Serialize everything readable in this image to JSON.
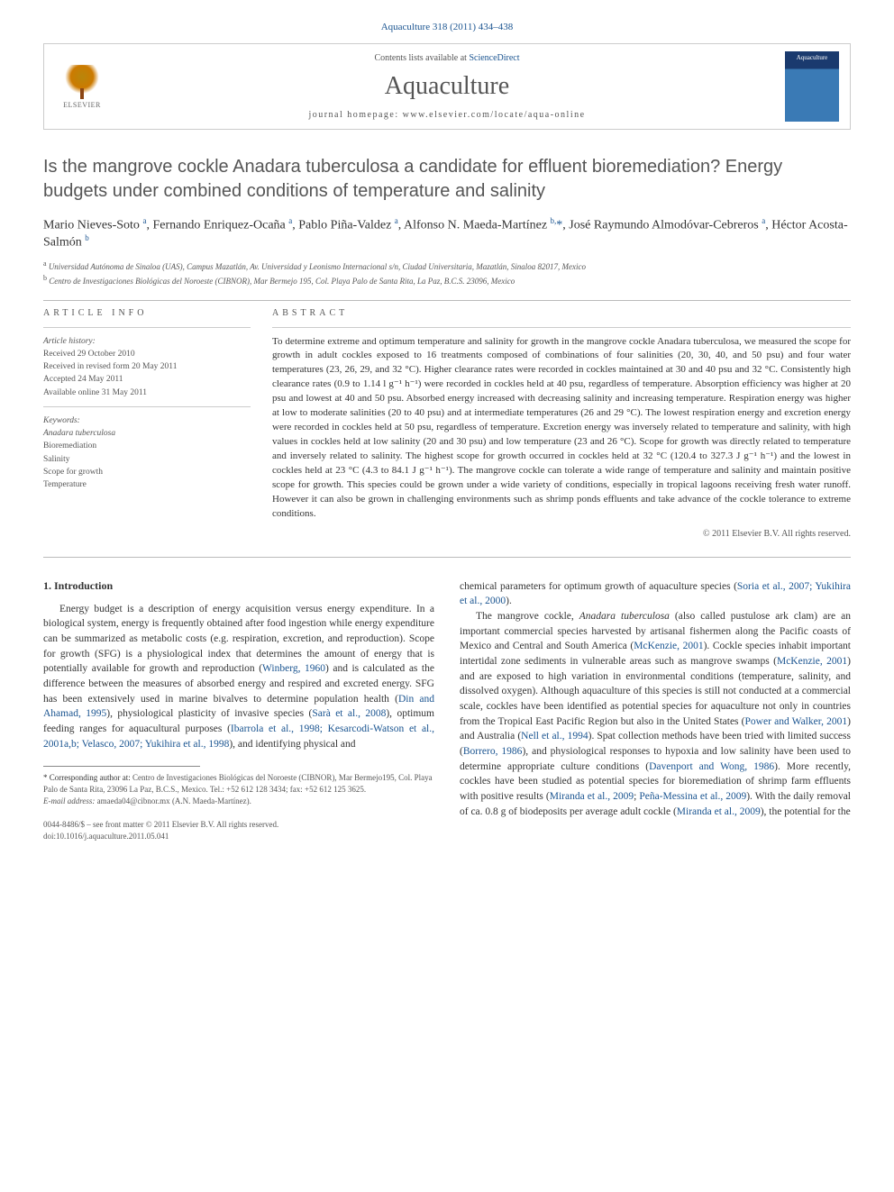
{
  "journal_ref": "Aquaculture 318 (2011) 434–438",
  "header": {
    "contents_prefix": "Contents lists available at ",
    "contents_link": "ScienceDirect",
    "journal_name": "Aquaculture",
    "homepage_prefix": "journal homepage: ",
    "homepage_url": "www.elsevier.com/locate/aqua-online",
    "elsevier_label": "ELSEVIER",
    "cover_label": "Aquaculture"
  },
  "title": "Is the mangrove cockle Anadara tuberculosa a candidate for effluent bioremediation? Energy budgets under combined conditions of temperature and salinity",
  "authors_html": "Mario Nieves-Soto <sup>a</sup>, Fernando Enriquez-Ocaña <sup>a</sup>, Pablo Piña-Valdez <sup>a</sup>, Alfonso N. Maeda-Martínez <sup>b,</sup><span class='ast'>*</span>, José Raymundo Almodóvar-Cebreros <sup>a</sup>, Héctor Acosta-Salmón <sup>b</sup>",
  "affiliations": {
    "a": "Universidad Autónoma de Sinaloa (UAS), Campus Mazatlán, Av. Universidad y Leonismo Internacional s/n, Ciudad Universitaria, Mazatlán, Sinaloa 82017, Mexico",
    "b": "Centro de Investigaciones Biológicas del Noroeste (CIBNOR), Mar Bermejo 195, Col. Playa Palo de Santa Rita, La Paz, B.C.S. 23096, Mexico"
  },
  "article_info": {
    "label": "ARTICLE INFO",
    "history_label": "Article history:",
    "received": "Received 29 October 2010",
    "revised": "Received in revised form 20 May 2011",
    "accepted": "Accepted 24 May 2011",
    "online": "Available online 31 May 2011",
    "keywords_label": "Keywords:",
    "keywords": [
      "Anadara tuberculosa",
      "Bioremediation",
      "Salinity",
      "Scope for growth",
      "Temperature"
    ]
  },
  "abstract": {
    "label": "ABSTRACT",
    "text": "To determine extreme and optimum temperature and salinity for growth in the mangrove cockle Anadara tuberculosa, we measured the scope for growth in adult cockles exposed to 16 treatments composed of combinations of four salinities (20, 30, 40, and 50 psu) and four water temperatures (23, 26, 29, and 32 °C). Higher clearance rates were recorded in cockles maintained at 30 and 40 psu and 32 °C. Consistently high clearance rates (0.9 to 1.14 l g⁻¹ h⁻¹) were recorded in cockles held at 40 psu, regardless of temperature. Absorption efficiency was higher at 20 psu and lowest at 40 and 50 psu. Absorbed energy increased with decreasing salinity and increasing temperature. Respiration energy was higher at low to moderate salinities (20 to 40 psu) and at intermediate temperatures (26 and 29 °C). The lowest respiration energy and excretion energy were recorded in cockles held at 50 psu, regardless of temperature. Excretion energy was inversely related to temperature and salinity, with high values in cockles held at low salinity (20 and 30 psu) and low temperature (23 and 26 °C). Scope for growth was directly related to temperature and inversely related to salinity. The highest scope for growth occurred in cockles held at 32 °C (120.4 to 327.3 J g⁻¹ h⁻¹) and the lowest in cockles held at 23 °C (4.3 to 84.1 J g⁻¹ h⁻¹). The mangrove cockle can tolerate a wide range of temperature and salinity and maintain positive scope for growth. This species could be grown under a wide variety of conditions, especially in tropical lagoons receiving fresh water runoff. However it can also be grown in challenging environments such as shrimp ponds effluents and take advance of the cockle tolerance to extreme conditions.",
    "copyright": "© 2011 Elsevier B.V. All rights reserved."
  },
  "body": {
    "intro_heading": "1. Introduction",
    "col1_html": "<span class='indent'>Energy budget is a description of energy acquisition versus energy expenditure. In a biological system, energy is frequently obtained after food ingestion while energy expenditure can be summarized as metabolic costs (e.g. respiration, excretion, and reproduction). Scope for growth (SFG) is a physiological index that determines the amount of energy that is potentially available for growth and reproduction (<span class='link'>Winberg, 1960</span>) and is calculated as the difference between the measures of absorbed energy and respired and excreted energy. SFG has been extensively used in marine bivalves to determine population health (<span class='link'>Din and Ahamad, 1995</span>), physiological plasticity of invasive species (<span class='link'>Sarà et al., 2008</span>), optimum feeding ranges for aquacultural purposes (<span class='link'>Ibarrola et al., 1998; Kesarcodi-Watson et al., 2001a,b; Velasco, 2007; Yukihira et al., 1998</span>), and identifying physical and</span>",
    "col2_html": "chemical parameters for optimum growth of aquaculture species (<span class='link'>Soria et al., 2007; Yukihira et al., 2000</span>).<br><span class='indent'>The mangrove cockle, <i>Anadara tuberculosa</i> (also called pustulose ark clam) are an important commercial species harvested by artisanal fishermen along the Pacific coasts of Mexico and Central and South America (<span class='link'>McKenzie, 2001</span>). Cockle species inhabit important intertidal zone sediments in vulnerable areas such as mangrove swamps (<span class='link'>McKenzie, 2001</span>) and are exposed to high variation in environmental conditions (temperature, salinity, and dissolved oxygen). Although aquaculture of this species is still not conducted at a commercial scale, cockles have been identified as potential species for aquaculture not only in countries from the Tropical East Pacific Region but also in the United States (<span class='link'>Power and Walker, 2001</span>) and Australia (<span class='link'>Nell et al., 1994</span>). Spat collection methods have been tried with limited success (<span class='link'>Borrero, 1986</span>), and physiological responses to hypoxia and low salinity have been used to determine appropriate culture conditions (<span class='link'>Davenport and Wong, 1986</span>). More recently, cockles have been studied as potential species for bioremediation of shrimp farm effluents with positive results (<span class='link'>Miranda et al., 2009</span>; <span class='link'>Peña-Messina et al., 2009</span>). With the daily removal of ca. 0.8 g of biodeposits per average adult cockle (<span class='link'>Miranda et al., 2009</span>), the potential for the</span>"
  },
  "footnote": {
    "corr_label": "* Corresponding author at:",
    "corr_text": " Centro de Investigaciones Biológicas del Noroeste (CIBNOR), Mar Bermejo195, Col. Playa Palo de Santa Rita, 23096 La Paz, B.C.S., Mexico. Tel.: +52 612 128 3434; fax: +52 612 125 3625.",
    "email_label": "E-mail address:",
    "email": " amaeda04@cibnor.mx",
    "email_suffix": " (A.N. Maeda-Martínez)."
  },
  "footer": {
    "line1": "0044-8486/$ – see front matter © 2011 Elsevier B.V. All rights reserved.",
    "line2": "doi:10.1016/j.aquaculture.2011.05.041"
  }
}
